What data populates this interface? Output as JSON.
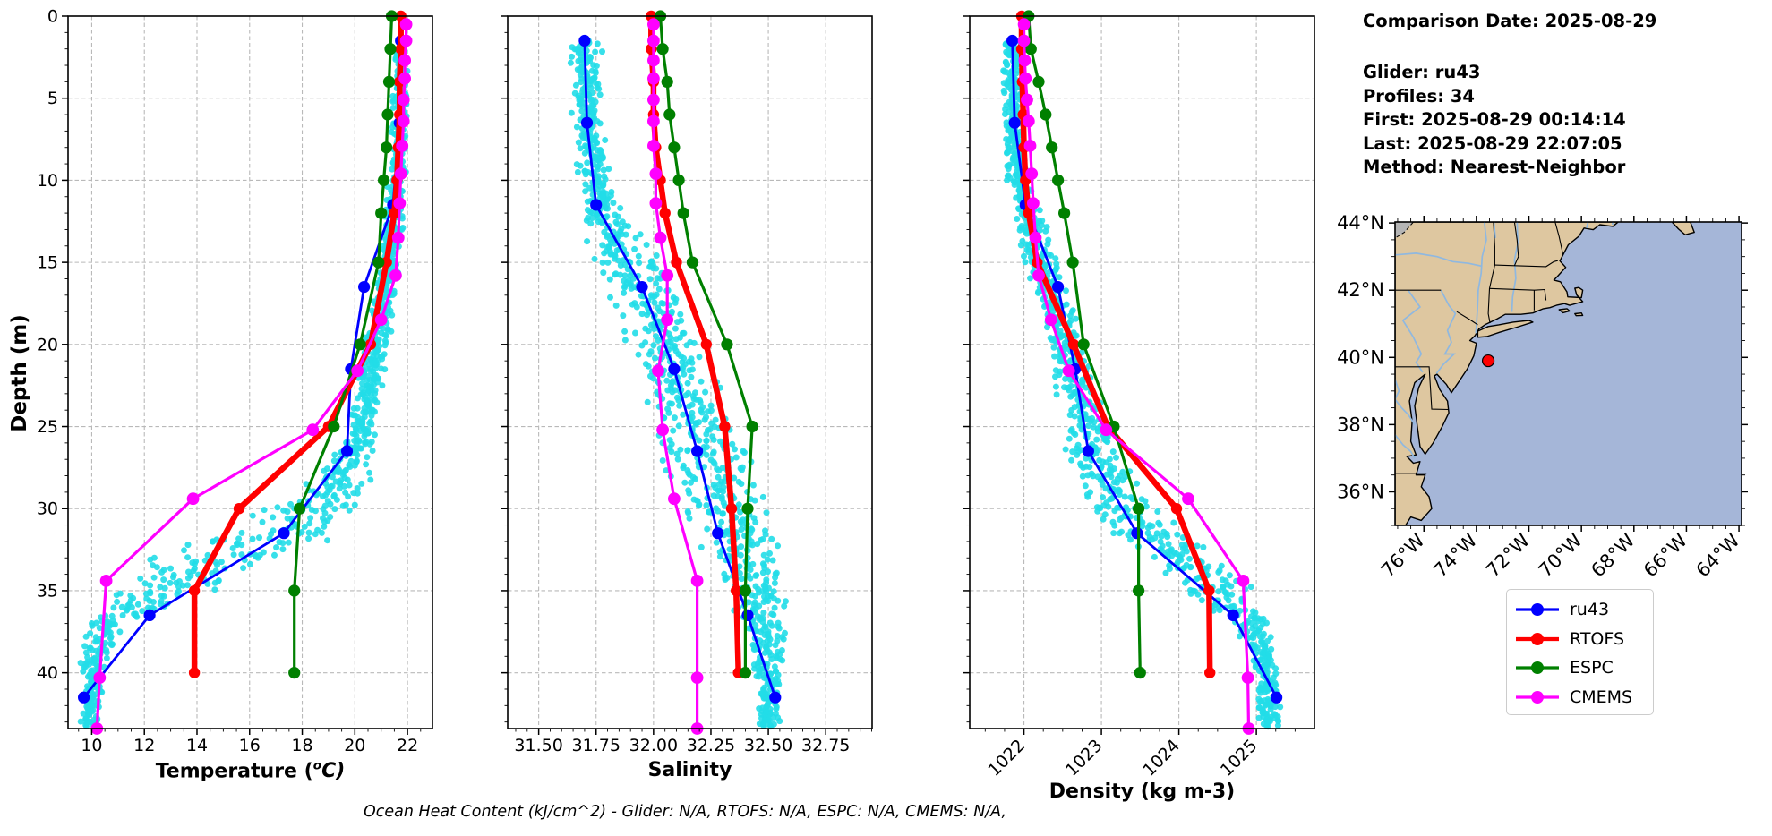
{
  "info_panel": {
    "title": "Comparison Date: 2025-08-29",
    "lines": [
      "Glider: ru43",
      "Profiles: 34",
      "First: 2025-08-29 00:14:14",
      "Last: 2025-08-29 22:07:05",
      "Method: Nearest-Neighbor"
    ]
  },
  "legend": {
    "entries": [
      {
        "label": "ru43",
        "color": "#0000ff"
      },
      {
        "label": "RTOFS",
        "color": "#ff0000"
      },
      {
        "label": "ESPC",
        "color": "#008000"
      },
      {
        "label": "CMEMS",
        "color": "#ff00ff"
      }
    ]
  },
  "footer_note": "Ocean Heat Content (kJ/cm^2) - Glider: N/A,  RTOFS: N/A,  ESPC: N/A,  CMEMS: N/A,",
  "chart_data": [
    {
      "type": "line",
      "title": "",
      "xlabel": "Temperature (°C)",
      "xlabel_parts": {
        "pre": "Temperature (",
        "sup": "o",
        "post": "C)"
      },
      "ylabel": "Depth (m)",
      "xlim": [
        9.1,
        22.95
      ],
      "ylim": [
        0,
        43.4
      ],
      "y_inverted": true,
      "grid": true,
      "xticks": [
        10,
        12,
        14,
        16,
        18,
        20,
        22
      ],
      "xtick_labels": [
        "10",
        "12",
        "14",
        "16",
        "18",
        "20",
        "22"
      ],
      "rotate_xticks": false,
      "yticks": [
        0,
        5,
        10,
        15,
        20,
        25,
        30,
        35,
        40
      ],
      "ytick_labels": [
        "0",
        "5",
        "10",
        "15",
        "20",
        "25",
        "30",
        "35",
        "40"
      ],
      "show_ytick_labels": true,
      "series": [
        {
          "name": "ru43",
          "color": "#0000ff",
          "depths": [
            1.5,
            6.5,
            11.5,
            16.5,
            21.5,
            26.5,
            31.5,
            36.5,
            41.5
          ],
          "values": [
            21.75,
            21.7,
            21.45,
            20.35,
            19.85,
            19.7,
            17.3,
            12.2,
            9.7
          ]
        },
        {
          "name": "RTOFS",
          "color": "#ff0000",
          "depths": [
            0,
            2,
            4,
            6,
            8,
            10,
            12,
            15,
            20,
            25,
            30,
            35,
            40
          ],
          "values": [
            21.75,
            21.75,
            21.7,
            21.7,
            21.65,
            21.6,
            21.5,
            21.2,
            20.6,
            19.0,
            15.6,
            13.9,
            13.9
          ]
        },
        {
          "name": "ESPC",
          "color": "#008000",
          "depths": [
            0,
            2,
            4,
            6,
            8,
            10,
            12,
            15,
            20,
            25,
            30,
            35,
            40
          ],
          "values": [
            21.4,
            21.35,
            21.3,
            21.25,
            21.2,
            21.1,
            21.0,
            20.9,
            20.2,
            19.2,
            17.9,
            17.7,
            17.7
          ]
        },
        {
          "name": "CMEMS",
          "color": "#ff00ff",
          "depths": [
            0.5,
            1.5,
            2.7,
            3.8,
            5.1,
            6.4,
            7.9,
            9.6,
            11.4,
            13.5,
            15.8,
            18.5,
            21.6,
            25.2,
            29.4,
            34.4,
            40.3,
            43.4
          ],
          "values": [
            21.95,
            21.95,
            21.9,
            21.9,
            21.85,
            21.85,
            21.8,
            21.75,
            21.7,
            21.65,
            21.55,
            21.0,
            20.1,
            18.4,
            13.85,
            10.55,
            10.3,
            10.2
          ]
        }
      ],
      "scatter": {
        "name": "glider-raw-points",
        "color": "#22dde8",
        "envelope": [
          [
            2.0,
            21.45,
            22.05
          ],
          [
            6,
            21.4,
            22.0
          ],
          [
            10,
            21.25,
            21.95
          ],
          [
            13,
            21.0,
            21.9
          ],
          [
            16,
            20.7,
            21.65
          ],
          [
            20,
            20.3,
            21.4
          ],
          [
            23,
            19.9,
            21.15
          ],
          [
            26,
            19.5,
            20.9
          ],
          [
            28.5,
            18.0,
            20.6
          ],
          [
            30.5,
            15.8,
            20.2
          ],
          [
            32.5,
            12.5,
            19.0
          ],
          [
            34,
            11.0,
            16.5
          ],
          [
            35.5,
            10.3,
            14.0
          ],
          [
            37,
            9.8,
            11.5
          ],
          [
            39,
            9.55,
            10.6
          ],
          [
            43.3,
            9.5,
            10.3
          ]
        ]
      }
    },
    {
      "type": "line",
      "title": "",
      "xlabel": "Salinity",
      "ylabel": "Depth (m)",
      "xlim": [
        31.365,
        32.952
      ],
      "ylim": [
        0,
        43.4
      ],
      "y_inverted": true,
      "grid": true,
      "xticks": [
        31.5,
        31.75,
        32.0,
        32.25,
        32.5,
        32.75
      ],
      "xtick_labels": [
        "31.50",
        "31.75",
        "32.00",
        "32.25",
        "32.50",
        "32.75"
      ],
      "rotate_xticks": false,
      "yticks": [
        0,
        5,
        10,
        15,
        20,
        25,
        30,
        35,
        40
      ],
      "ytick_labels": [
        "0",
        "5",
        "10",
        "15",
        "20",
        "25",
        "30",
        "35",
        "40"
      ],
      "show_ytick_labels": false,
      "series": [
        {
          "name": "ru43",
          "color": "#0000ff",
          "depths": [
            1.5,
            6.5,
            11.5,
            16.5,
            21.5,
            26.5,
            31.5,
            36.5,
            41.5
          ],
          "values": [
            31.7,
            31.71,
            31.75,
            31.95,
            32.09,
            32.19,
            32.28,
            32.41,
            32.53
          ]
        },
        {
          "name": "RTOFS",
          "color": "#ff0000",
          "depths": [
            0,
            2,
            4,
            6,
            8,
            10,
            12,
            15,
            20,
            25,
            30,
            35,
            40
          ],
          "values": [
            31.99,
            31.99,
            32.0,
            32.0,
            32.01,
            32.03,
            32.05,
            32.1,
            32.23,
            32.31,
            32.34,
            32.36,
            32.37
          ]
        },
        {
          "name": "ESPC",
          "color": "#008000",
          "depths": [
            0,
            2,
            4,
            6,
            8,
            10,
            12,
            15,
            20,
            25,
            30,
            35,
            40
          ],
          "values": [
            32.03,
            32.04,
            32.06,
            32.07,
            32.09,
            32.11,
            32.13,
            32.17,
            32.32,
            32.43,
            32.41,
            32.4,
            32.4
          ]
        },
        {
          "name": "CMEMS",
          "color": "#ff00ff",
          "depths": [
            0.5,
            1.5,
            2.7,
            3.8,
            5.1,
            6.4,
            7.9,
            9.6,
            11.4,
            13.5,
            15.8,
            18.5,
            21.6,
            25.2,
            29.4,
            34.4,
            40.3,
            43.4
          ],
          "values": [
            32.0,
            32.0,
            32.0,
            32.0,
            32.0,
            32.0,
            32.0,
            32.01,
            32.01,
            32.03,
            32.06,
            32.06,
            32.02,
            32.04,
            32.09,
            32.19,
            32.19,
            32.19
          ]
        }
      ],
      "scatter": {
        "name": "glider-raw-points",
        "color": "#22dde8",
        "envelope": [
          [
            1.5,
            31.63,
            31.78
          ],
          [
            6,
            31.64,
            31.79
          ],
          [
            10,
            31.66,
            31.82
          ],
          [
            12.5,
            31.68,
            31.9
          ],
          [
            14.5,
            31.7,
            32.05
          ],
          [
            17,
            31.78,
            32.15
          ],
          [
            20,
            31.88,
            32.22
          ],
          [
            23,
            31.95,
            32.32
          ],
          [
            26,
            32.0,
            32.42
          ],
          [
            29,
            32.05,
            32.5
          ],
          [
            32,
            32.18,
            32.57
          ],
          [
            35,
            32.3,
            32.6
          ],
          [
            38,
            32.4,
            32.58
          ],
          [
            41,
            32.44,
            32.56
          ],
          [
            43.3,
            32.45,
            32.55
          ]
        ]
      }
    },
    {
      "type": "line",
      "title": "",
      "xlabel": "Density (kg m-3)",
      "ylabel": "Depth (m)",
      "xlim": [
        1021.3,
        1025.75
      ],
      "ylim": [
        0,
        43.4
      ],
      "y_inverted": true,
      "grid": true,
      "xticks": [
        1022,
        1023,
        1024,
        1025
      ],
      "xtick_labels": [
        "1022",
        "1023",
        "1024",
        "1025"
      ],
      "rotate_xticks": true,
      "yticks": [
        0,
        5,
        10,
        15,
        20,
        25,
        30,
        35,
        40
      ],
      "ytick_labels": [
        "0",
        "5",
        "10",
        "15",
        "20",
        "25",
        "30",
        "35",
        "40"
      ],
      "show_ytick_labels": false,
      "series": [
        {
          "name": "ru43",
          "color": "#0000ff",
          "depths": [
            1.5,
            6.5,
            11.5,
            16.5,
            21.5,
            26.5,
            31.5,
            36.5,
            41.5
          ],
          "values": [
            1021.85,
            1021.88,
            1022.02,
            1022.44,
            1022.66,
            1022.83,
            1023.46,
            1024.7,
            1025.26
          ]
        },
        {
          "name": "RTOFS",
          "color": "#ff0000",
          "depths": [
            0,
            2,
            4,
            6,
            8,
            10,
            12,
            15,
            20,
            25,
            30,
            35,
            40
          ],
          "values": [
            1021.97,
            1021.97,
            1021.98,
            1021.99,
            1022.0,
            1022.02,
            1022.06,
            1022.17,
            1022.64,
            1023.08,
            1023.97,
            1024.39,
            1024.4
          ]
        },
        {
          "name": "ESPC",
          "color": "#008000",
          "depths": [
            0,
            2,
            4,
            6,
            8,
            10,
            12,
            15,
            20,
            25,
            30,
            35,
            40
          ],
          "values": [
            1022.06,
            1022.09,
            1022.19,
            1022.28,
            1022.36,
            1022.44,
            1022.52,
            1022.63,
            1022.77,
            1023.16,
            1023.48,
            1023.48,
            1023.5
          ]
        },
        {
          "name": "CMEMS",
          "color": "#ff00ff",
          "depths": [
            0.5,
            1.5,
            2.7,
            3.8,
            5.1,
            6.4,
            7.9,
            9.6,
            11.4,
            13.5,
            15.8,
            18.5,
            21.6,
            25.2,
            29.4,
            34.4,
            40.3,
            43.4
          ],
          "values": [
            1022.0,
            1022.0,
            1022.01,
            1022.02,
            1022.04,
            1022.06,
            1022.08,
            1022.1,
            1022.12,
            1022.15,
            1022.19,
            1022.35,
            1022.58,
            1023.06,
            1024.12,
            1024.83,
            1024.89,
            1024.9
          ]
        }
      ],
      "scatter": {
        "name": "glider-raw-points",
        "color": "#22dde8",
        "envelope": [
          [
            1.5,
            1021.7,
            1021.97
          ],
          [
            6,
            1021.72,
            1022.0
          ],
          [
            10,
            1021.76,
            1022.08
          ],
          [
            13,
            1021.85,
            1022.35
          ],
          [
            16,
            1022.05,
            1022.55
          ],
          [
            20,
            1022.3,
            1022.8
          ],
          [
            24,
            1022.45,
            1023.05
          ],
          [
            27.5,
            1022.55,
            1023.35
          ],
          [
            30.5,
            1022.85,
            1023.9
          ],
          [
            33,
            1023.4,
            1024.6
          ],
          [
            35,
            1024.0,
            1025.0
          ],
          [
            37,
            1024.6,
            1025.2
          ],
          [
            39,
            1024.95,
            1025.3
          ],
          [
            43.3,
            1025.0,
            1025.32
          ]
        ]
      }
    }
  ],
  "map": {
    "lon_range": [
      -77.1,
      -63.9
    ],
    "lat_range": [
      35.0,
      44.03
    ],
    "lon_ticks": [
      -76,
      -74,
      -72,
      -70,
      -68,
      -66,
      -64
    ],
    "lon_tick_labels": [
      "76°W",
      "74°W",
      "72°W",
      "70°W",
      "68°W",
      "66°W",
      "64°W"
    ],
    "lat_ticks": [
      44,
      42,
      40,
      38,
      36
    ],
    "lat_tick_labels": [
      "44°N",
      "42°N",
      "40°N",
      "38°N",
      "36°N"
    ],
    "marker": {
      "lon": -73.55,
      "lat": 39.9,
      "color": "#ff0000"
    },
    "colors": {
      "land": "#dec7a0",
      "ocean": "#a5b6d8",
      "river": "#8fb8e0",
      "gray_area": "#b5b5b5",
      "coast": "#000000"
    }
  }
}
